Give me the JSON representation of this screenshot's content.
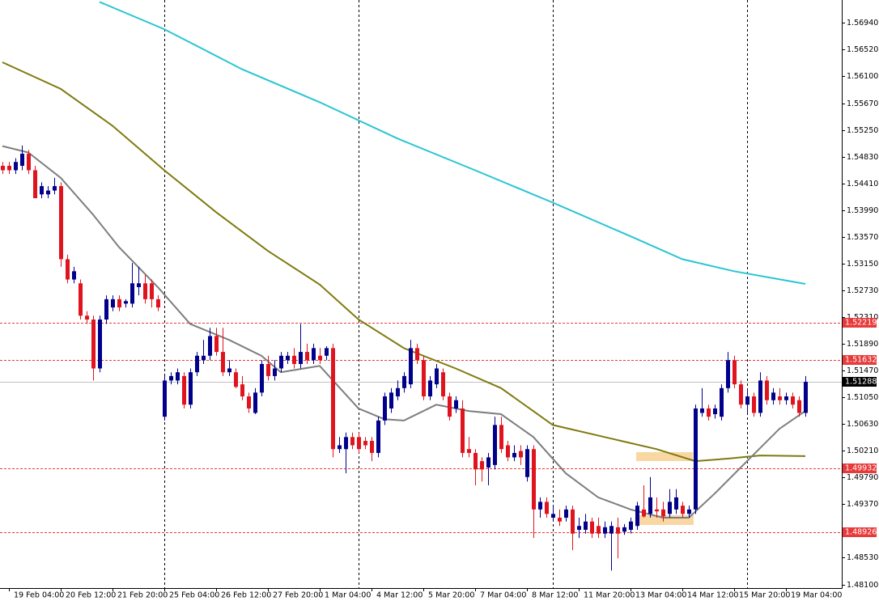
{
  "chart_data": {
    "type": "candlestick",
    "categories": [
      null,
      "19 Feb 04:00",
      null,
      null,
      null,
      null,
      null,
      null,
      null,
      "20 Feb 12:00",
      null,
      null,
      null,
      null,
      null,
      null,
      null,
      "21 Feb 20:00",
      null,
      null,
      null,
      null,
      null,
      null,
      null,
      "25 Feb 04:00",
      null,
      null,
      null,
      null,
      null,
      null,
      null,
      "26 Feb 12:00",
      null,
      null,
      null,
      null,
      null,
      null,
      null,
      "27 Feb 20:00",
      null,
      null,
      null,
      null,
      null,
      null,
      null,
      "1 Mar 04:00",
      null,
      null,
      null,
      null,
      null,
      null,
      null,
      "4 Mar 12:00",
      null,
      null,
      null,
      null,
      null,
      null,
      null,
      "5 Mar 20:00",
      null,
      null,
      null,
      null,
      null,
      null,
      null,
      "7 Mar 04:00",
      null,
      null,
      null,
      null,
      null,
      null,
      null,
      "8 Mar 12:00",
      null,
      null,
      null,
      null,
      null,
      null,
      null,
      "11 Mar 20:00",
      null,
      null,
      null,
      null,
      null,
      null,
      null,
      "13 Mar 04:00",
      null,
      null,
      null,
      null,
      null,
      null,
      null,
      "14 Mar 12:00",
      null,
      null,
      null,
      null,
      null,
      null,
      null,
      "15 Mar 20:00",
      null,
      null,
      null,
      null,
      null,
      null,
      null,
      "19 Mar 04:00",
      null,
      null,
      null
    ],
    "open": [
      1.5469,
      1.5469,
      1.5462,
      1.5469,
      1.5488,
      1.5462,
      1.5424,
      1.5424,
      1.543,
      1.5437,
      1.5322,
      1.529,
      1.5284,
      1.5233,
      1.5227,
      1.515,
      1.5227,
      1.5246,
      1.5259,
      1.5252,
      1.5252,
      1.5278,
      1.5284,
      1.5284,
      1.5259,
      1.5074,
      1.5131,
      1.5131,
      1.5138,
      1.5093,
      1.5144,
      1.5163,
      1.517,
      1.5201,
      1.5176,
      1.5144,
      1.5144,
      1.5125,
      1.5106,
      1.508,
      1.5112,
      1.5157,
      1.5138,
      1.515,
      1.5163,
      1.517,
      1.5157,
      1.5176,
      1.5163,
      1.517,
      1.517,
      1.5182,
      1.5023,
      1.5023,
      1.5042,
      1.5042,
      1.5036,
      1.5036,
      1.5017,
      1.5068,
      1.5087,
      1.5106,
      1.5119,
      1.5125,
      1.5182,
      1.5163,
      1.5106,
      1.5125,
      1.5144,
      1.5106,
      1.5087,
      1.5087,
      1.5023,
      1.5017,
      1.5004,
      1.4994,
      1.4998,
      1.5061,
      1.5029,
      1.501,
      1.502,
      1.4979,
      1.5023,
      1.4928,
      1.494,
      1.4915,
      1.4915,
      1.4915,
      1.4928,
      1.4896,
      1.4896,
      1.4909,
      1.4902,
      1.489,
      1.489,
      1.49,
      1.4893,
      1.4896,
      1.4902,
      1.4928,
      1.4921,
      1.4928,
      1.4928,
      1.4921,
      1.4928,
      1.4934,
      1.4921,
      1.4928,
      1.508,
      1.5087,
      1.5078,
      1.5074,
      1.5119,
      1.5163,
      1.5125,
      1.5093,
      1.5106,
      1.508,
      1.5131,
      1.51,
      1.5106,
      1.51,
      1.5106,
      1.51,
      1.508
    ],
    "high": [
      1.5475,
      1.5475,
      1.5481,
      1.5501,
      1.5494,
      1.5469,
      1.5443,
      1.5437,
      1.545,
      1.5443,
      1.5329,
      1.531,
      1.529,
      1.524,
      1.5233,
      1.5233,
      1.5265,
      1.5265,
      1.5265,
      1.5259,
      1.5316,
      1.531,
      1.5297,
      1.529,
      1.5265,
      1.5138,
      1.5144,
      1.515,
      1.5144,
      1.515,
      1.5176,
      1.5195,
      1.5214,
      1.5214,
      1.5214,
      1.5163,
      1.515,
      1.5138,
      1.5112,
      1.5119,
      1.5163,
      1.517,
      1.5163,
      1.5176,
      1.5176,
      1.5182,
      1.522,
      1.5189,
      1.5189,
      1.5182,
      1.5185,
      1.5189,
      1.5042,
      1.5049,
      1.5049,
      1.5049,
      1.5042,
      1.5042,
      1.5074,
      1.5112,
      1.5119,
      1.5131,
      1.5144,
      1.5195,
      1.5189,
      1.517,
      1.5138,
      1.5157,
      1.515,
      1.5112,
      1.5106,
      1.51,
      1.5042,
      1.5023,
      1.501,
      1.5017,
      1.5074,
      1.5074,
      1.5036,
      1.5029,
      1.5029,
      1.5029,
      1.5029,
      1.4947,
      1.4947,
      1.4934,
      1.4928,
      1.4934,
      1.4934,
      1.4915,
      1.4921,
      1.4915,
      1.4915,
      1.4909,
      1.4909,
      1.4915,
      1.4905,
      1.4915,
      1.494,
      1.4966,
      1.4979,
      1.4947,
      1.494,
      1.496,
      1.496,
      1.494,
      1.4934,
      1.5093,
      1.5119,
      1.5093,
      1.5093,
      1.5125,
      1.5176,
      1.517,
      1.5131,
      1.5119,
      1.5112,
      1.5144,
      1.5138,
      1.5119,
      1.5119,
      1.5112,
      1.5112,
      1.5106,
      1.5138
    ],
    "low": [
      1.5456,
      1.5456,
      1.5456,
      1.5462,
      1.5456,
      1.5418,
      1.5418,
      1.5418,
      1.5424,
      1.531,
      1.5284,
      1.5284,
      1.5227,
      1.522,
      1.5131,
      1.5144,
      1.522,
      1.524,
      1.524,
      1.5246,
      1.5246,
      1.5265,
      1.5252,
      1.5246,
      1.524,
      1.5068,
      1.5125,
      1.5125,
      1.5087,
      1.5087,
      1.5138,
      1.5157,
      1.5163,
      1.517,
      1.5138,
      1.5138,
      1.5119,
      1.51,
      1.508,
      1.5078,
      1.5106,
      1.5131,
      1.5131,
      1.5144,
      1.5157,
      1.515,
      1.515,
      1.5157,
      1.5157,
      1.5157,
      1.5163,
      1.501,
      1.5017,
      1.4985,
      1.5023,
      1.5017,
      1.5023,
      1.5004,
      1.501,
      1.5061,
      1.508,
      1.51,
      1.5112,
      1.5119,
      1.5157,
      1.51,
      1.51,
      1.5119,
      1.51,
      1.5068,
      1.508,
      1.501,
      1.501,
      1.4966,
      1.4972,
      1.4966,
      1.4991,
      1.5017,
      1.5004,
      1.5004,
      1.4998,
      1.4972,
      1.4883,
      1.4915,
      1.4915,
      1.4909,
      1.4902,
      1.4909,
      1.4864,
      1.4883,
      1.489,
      1.4883,
      1.4883,
      1.4883,
      1.4832,
      1.4851,
      1.4888,
      1.489,
      1.4896,
      1.4915,
      1.4915,
      1.4915,
      1.4909,
      1.4915,
      1.4921,
      1.4915,
      1.4915,
      1.4921,
      1.5074,
      1.5068,
      1.5071,
      1.5068,
      1.5112,
      1.5119,
      1.5087,
      1.508,
      1.5074,
      1.5074,
      1.5093,
      1.5093,
      1.5093,
      1.5093,
      1.5087,
      1.5074,
      1.5074
    ],
    "close": [
      1.5462,
      1.5462,
      1.5475,
      1.5488,
      1.5462,
      1.5418,
      1.5437,
      1.543,
      1.5437,
      1.5322,
      1.529,
      1.5303,
      1.5233,
      1.5227,
      1.515,
      1.5227,
      1.5259,
      1.5259,
      1.5246,
      1.5256,
      1.5284,
      1.5284,
      1.5259,
      1.5259,
      1.5246,
      1.5131,
      1.5138,
      1.5144,
      1.5093,
      1.5144,
      1.517,
      1.517,
      1.5201,
      1.5176,
      1.5144,
      1.515,
      1.5121,
      1.5106,
      1.5087,
      1.5112,
      1.5157,
      1.5138,
      1.515,
      1.517,
      1.517,
      1.5157,
      1.5176,
      1.5163,
      1.5182,
      1.5163,
      1.5182,
      1.5023,
      1.5029,
      1.5042,
      1.5029,
      1.5023,
      1.5029,
      1.5017,
      1.5068,
      1.5106,
      1.5112,
      1.5119,
      1.5138,
      1.5182,
      1.5163,
      1.5106,
      1.5131,
      1.515,
      1.5106,
      1.5074,
      1.51,
      1.5017,
      1.5017,
      1.4991,
      1.4991,
      1.501,
      1.5061,
      1.5023,
      1.501,
      1.5017,
      1.501,
      1.5023,
      1.4928,
      1.494,
      1.4921,
      1.4921,
      1.4909,
      1.4928,
      1.489,
      1.4902,
      1.4909,
      1.489,
      1.489,
      1.49,
      1.4902,
      1.489,
      1.49,
      1.4909,
      1.4934,
      1.4917,
      1.4947,
      1.4925,
      1.4917,
      1.494,
      1.4947,
      1.4921,
      1.4928,
      1.5087,
      1.5087,
      1.5074,
      1.5087,
      1.5119,
      1.5163,
      1.5125,
      1.5093,
      1.5106,
      1.508,
      1.5131,
      1.51,
      1.5112,
      1.51,
      1.5106,
      1.5093,
      1.508,
      1.5129
    ],
    "up_color": "#00008b",
    "down_color": "#e0141e",
    "lines": [
      {
        "color": "#29c5d3",
        "x": [
          15,
          25,
          37,
          49,
          61,
          73,
          85,
          97,
          105,
          113,
          124
        ],
        "values": [
          1.5727,
          1.5684,
          1.5621,
          1.5569,
          1.5512,
          1.5462,
          1.5411,
          1.5358,
          1.5322,
          1.5303,
          1.5283
        ]
      },
      {
        "color": "#7f7a10",
        "x": [
          0,
          9,
          17,
          25,
          33,
          41,
          49,
          55,
          62,
          70,
          77,
          85,
          93,
          101,
          107,
          112,
          117,
          124
        ],
        "values": [
          1.5632,
          1.559,
          1.5532,
          1.5462,
          1.5396,
          1.5335,
          1.5282,
          1.5227,
          1.5182,
          1.515,
          1.5119,
          1.5061,
          1.5042,
          1.5023,
          1.5004,
          1.5008,
          1.5013,
          1.5012
        ]
      },
      {
        "color": "#7d7d7d",
        "x": [
          0,
          4,
          9,
          14,
          18,
          24,
          29,
          35,
          40,
          43,
          49,
          55,
          59,
          62,
          67,
          72,
          77,
          82,
          87,
          92,
          97,
          102,
          106,
          110,
          115,
          120,
          124
        ],
        "values": [
          1.55,
          1.549,
          1.545,
          1.5392,
          1.5341,
          1.5278,
          1.522,
          1.5195,
          1.517,
          1.5144,
          1.5154,
          1.5087,
          1.507,
          1.5068,
          1.5093,
          1.5083,
          1.5078,
          1.5042,
          1.4985,
          1.4947,
          1.4928,
          1.4915,
          1.4915,
          1.4953,
          1.5004,
          1.5055,
          1.5083
        ]
      }
    ],
    "levels": [
      {
        "value": 1.52219,
        "color": "#e83a3a"
      },
      {
        "value": 1.51632,
        "color": "#e83a3a"
      },
      {
        "value": 1.49932,
        "color": "#e83a3a"
      },
      {
        "value": 1.48926,
        "color": "#e83a3a"
      }
    ],
    "bid": {
      "value": 1.51288,
      "color": "#c0c0c0"
    },
    "ylim": [
      1.4803,
      1.573
    ],
    "yticks": [
      {
        "value": 1.5694,
        "label": "1.56940"
      },
      {
        "value": 1.5652,
        "label": "1.56520"
      },
      {
        "value": 1.561,
        "label": "1.56100"
      },
      {
        "value": 1.5567,
        "label": "1.55670"
      },
      {
        "value": 1.5525,
        "label": "1.55250"
      },
      {
        "value": 1.5483,
        "label": "1.54830"
      },
      {
        "value": 1.5441,
        "label": "1.54410"
      },
      {
        "value": 1.5399,
        "label": "1.53990"
      },
      {
        "value": 1.5357,
        "label": "1.53570"
      },
      {
        "value": 1.5315,
        "label": "1.53150"
      },
      {
        "value": 1.5273,
        "label": "1.52730"
      },
      {
        "value": 1.5231,
        "label": "1.52310"
      },
      {
        "value": 1.5189,
        "label": "1.51890"
      },
      {
        "value": 1.5147,
        "label": "1.51470"
      },
      {
        "value": 1.5105,
        "label": "1.51050"
      },
      {
        "value": 1.5063,
        "label": "1.50630"
      },
      {
        "value": 1.5021,
        "label": "1.50210"
      },
      {
        "value": 1.4979,
        "label": "1.49790"
      },
      {
        "value": 1.4937,
        "label": "1.49370"
      },
      {
        "value": 1.4853,
        "label": "1.48530"
      },
      {
        "value": 1.481,
        "label": "1.48100"
      }
    ]
  }
}
